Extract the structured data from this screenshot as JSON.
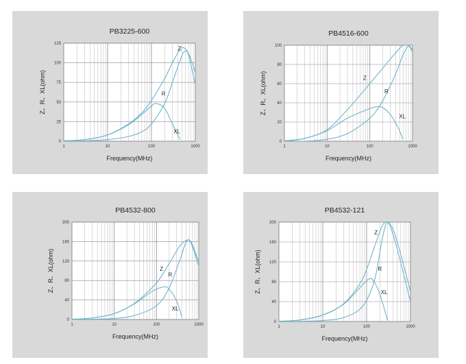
{
  "chart_data": [
    {
      "type": "line",
      "title": "PB3225-600",
      "xlabel": "Frequency(MHz)",
      "ylabel": "Z、R、XL(ohm)",
      "x_scale": "log",
      "xlim": [
        1,
        1000
      ],
      "ylim": [
        0,
        125
      ],
      "x_ticks": [
        "1",
        "10",
        "100",
        "1000"
      ],
      "y_ticks": [
        "0",
        "25",
        "50",
        "75",
        "100",
        "125"
      ],
      "grid": true,
      "series": [
        {
          "name": "Z",
          "x": [
            1,
            3,
            10,
            30,
            60,
            100,
            200,
            300,
            450,
            550,
            700,
            1000
          ],
          "y": [
            0.5,
            2,
            8,
            22,
            36,
            52,
            80,
            100,
            117,
            119,
            110,
            72
          ]
        },
        {
          "name": "R",
          "x": [
            1,
            3,
            10,
            30,
            60,
            100,
            200,
            300,
            450,
            550,
            700,
            1000
          ],
          "y": [
            0,
            0.5,
            2,
            6,
            12,
            22,
            48,
            75,
            103,
            114,
            112,
            88
          ]
        },
        {
          "name": "XL",
          "x": [
            1,
            3,
            10,
            30,
            60,
            100,
            130,
            200,
            300,
            450
          ],
          "y": [
            0.5,
            2,
            8,
            21,
            34,
            45,
            48,
            42,
            22,
            2
          ]
        }
      ],
      "labels": [
        {
          "text": "Z",
          "x": 400,
          "y": 116
        },
        {
          "text": "R",
          "x": 170,
          "y": 58
        },
        {
          "text": "XL",
          "x": 320,
          "y": 10
        }
      ]
    },
    {
      "type": "line",
      "title": "PB4516-600",
      "xlabel": "Frequency(MHz)",
      "ylabel": "Z、R、XL(ohm)",
      "x_scale": "log",
      "xlim": [
        1,
        1000
      ],
      "ylim": [
        0,
        100
      ],
      "x_ticks": [
        "1",
        "10",
        "100",
        "1000"
      ],
      "y_ticks": [
        "0",
        "20",
        "40",
        "60",
        "80",
        "100"
      ],
      "grid": true,
      "series": [
        {
          "name": "Z",
          "x": [
            1,
            3,
            10,
            30,
            100,
            200,
            400,
            600,
            800,
            1000
          ],
          "y": [
            0,
            3,
            12,
            33,
            60,
            76,
            92,
            100,
            100,
            93
          ]
        },
        {
          "name": "R",
          "x": [
            1,
            3,
            10,
            30,
            100,
            200,
            400,
            600,
            800,
            1000
          ],
          "y": [
            0,
            0,
            2,
            8,
            24,
            42,
            70,
            90,
            99,
            95
          ]
        },
        {
          "name": "XL",
          "x": [
            1,
            3,
            10,
            30,
            100,
            150,
            200,
            300,
            450,
            600
          ],
          "y": [
            0.5,
            3,
            11,
            24,
            34,
            36,
            35,
            28,
            15,
            2
          ]
        }
      ],
      "labels": [
        {
          "text": "Z",
          "x": 70,
          "y": 64
        },
        {
          "text": "R",
          "x": 220,
          "y": 50
        },
        {
          "text": "XL",
          "x": 480,
          "y": 24
        }
      ]
    },
    {
      "type": "line",
      "title": "PB4532-800",
      "xlabel": "Frequency(MHz)",
      "ylabel": "Z、R、XL(ohm)",
      "x_scale": "log",
      "xlim": [
        1,
        1000
      ],
      "ylim": [
        0,
        200
      ],
      "x_ticks": [
        "1",
        "10",
        "100",
        "1000"
      ],
      "y_ticks": [
        "0",
        "40",
        "80",
        "120",
        "160",
        "200"
      ],
      "grid": true,
      "series": [
        {
          "name": "Z",
          "x": [
            1,
            3,
            10,
            30,
            100,
            200,
            350,
            500,
            650,
            1000
          ],
          "y": [
            0.5,
            3,
            12,
            33,
            75,
            115,
            150,
            162,
            158,
            110
          ]
        },
        {
          "name": "R",
          "x": [
            1,
            3,
            10,
            30,
            100,
            200,
            350,
            500,
            650,
            1000
          ],
          "y": [
            0,
            0.5,
            2,
            8,
            28,
            65,
            120,
            158,
            160,
            118
          ]
        },
        {
          "name": "XL",
          "x": [
            1,
            3,
            10,
            30,
            80,
            150,
            200,
            300,
            400
          ],
          "y": [
            0.5,
            3,
            12,
            32,
            58,
            67,
            62,
            38,
            5
          ]
        }
      ],
      "labels": [
        {
          "text": "Z",
          "x": 120,
          "y": 100
        },
        {
          "text": "R",
          "x": 190,
          "y": 88
        },
        {
          "text": "XL",
          "x": 230,
          "y": 18
        }
      ]
    },
    {
      "type": "line",
      "title": "PB4532-121",
      "xlabel": "Frequency(MHz)",
      "ylabel": "Z、R、XL(ohm)",
      "x_scale": "log",
      "xlim": [
        1,
        1000
      ],
      "ylim": [
        0,
        200
      ],
      "x_ticks": [
        "1",
        "10",
        "100",
        "1000"
      ],
      "y_ticks": [
        "0",
        "40",
        "80",
        "120",
        "160",
        "200"
      ],
      "grid": true,
      "series": [
        {
          "name": "Z",
          "x": [
            1,
            3,
            10,
            30,
            80,
            150,
            220,
            280,
            350,
            500,
            1000
          ],
          "y": [
            0.5,
            3,
            13,
            36,
            85,
            150,
            190,
            200,
            190,
            145,
            40
          ]
        },
        {
          "name": "R",
          "x": [
            1,
            3,
            10,
            30,
            80,
            150,
            220,
            280,
            350,
            500,
            1000
          ],
          "y": [
            0,
            0.5,
            2,
            8,
            30,
            82,
            160,
            197,
            195,
            160,
            60
          ]
        },
        {
          "name": "XL",
          "x": [
            1,
            3,
            10,
            30,
            70,
            110,
            140,
            200,
            300
          ],
          "y": [
            0.5,
            3,
            13,
            35,
            68,
            85,
            83,
            55,
            2
          ]
        }
      ],
      "labels": [
        {
          "text": "Z",
          "x": 150,
          "y": 175
        },
        {
          "text": "R",
          "x": 180,
          "y": 102
        },
        {
          "text": "XL",
          "x": 210,
          "y": 55
        }
      ]
    }
  ]
}
